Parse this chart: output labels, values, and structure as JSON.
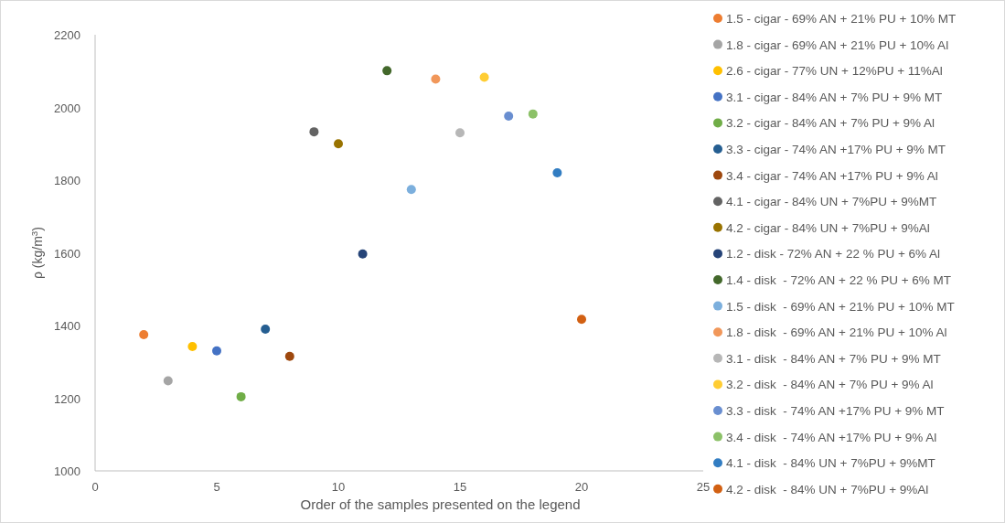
{
  "chart_data": {
    "type": "scatter",
    "xlabel": "Order of the samples presented on the legend",
    "ylabel": "ρ (kg/m$^{3}$)",
    "xlim": [
      0,
      25
    ],
    "xticks": [
      0,
      5,
      10,
      15,
      20,
      25
    ],
    "ylim": [
      1000,
      2200
    ],
    "yticks": [
      1000,
      1200,
      1400,
      1600,
      1800,
      2000,
      2200
    ],
    "grid": false,
    "legend": "right",
    "marker": "circle",
    "series": [
      {
        "name": "1.5 - cigar - 69% AN + 21% PU + 10% MT",
        "color": "#ed7d31",
        "x": [
          2
        ],
        "values": [
          1375
        ]
      },
      {
        "name": "1.8 - cigar - 69% AN + 21% PU + 10% Al",
        "color": "#a5a5a5",
        "x": [
          3
        ],
        "values": [
          1248
        ]
      },
      {
        "name": "2.6 - cigar - 77% UN + 12%PU + 11%Al",
        "color": "#ffc000",
        "x": [
          4
        ],
        "values": [
          1342
        ]
      },
      {
        "name": "3.1 - cigar - 84% AN + 7% PU + 9% MT",
        "color": "#4472c4",
        "x": [
          5
        ],
        "values": [
          1330
        ]
      },
      {
        "name": "3.2 - cigar - 84% AN + 7% PU + 9% Al",
        "color": "#70ad47",
        "x": [
          6
        ],
        "values": [
          1204
        ]
      },
      {
        "name": "3.3 - cigar - 74% AN +17% PU + 9% MT",
        "color": "#255e91",
        "x": [
          7
        ],
        "values": [
          1390
        ]
      },
      {
        "name": "3.4 - cigar - 74% AN +17% PU + 9% Al",
        "color": "#9e480e",
        "x": [
          8
        ],
        "values": [
          1315
        ]
      },
      {
        "name": "4.1 - cigar - 84% UN + 7%PU + 9%MT",
        "color": "#636363",
        "x": [
          9
        ],
        "values": [
          1933
        ]
      },
      {
        "name": "4.2 - cigar - 84% UN + 7%PU + 9%Al",
        "color": "#997300",
        "x": [
          10
        ],
        "values": [
          1900
        ]
      },
      {
        "name": "1.2 - disk - 72% AN + 22 % PU + 6% Al",
        "color": "#264478",
        "x": [
          11
        ],
        "values": [
          1597
        ]
      },
      {
        "name": "1.4 - disk  - 72% AN + 22 % PU + 6% MT",
        "color": "#43682b",
        "x": [
          12
        ],
        "values": [
          2101
        ]
      },
      {
        "name": "1.5 - disk  - 69% AN + 21% PU + 10% MT",
        "color": "#7cafdd",
        "x": [
          13
        ],
        "values": [
          1774
        ]
      },
      {
        "name": "1.8 - disk  - 69% AN + 21% PU + 10% Al",
        "color": "#f1975a",
        "x": [
          14
        ],
        "values": [
          2078
        ]
      },
      {
        "name": "3.1 - disk  - 84% AN + 7% PU + 9% MT",
        "color": "#b7b7b7",
        "x": [
          15
        ],
        "values": [
          1930
        ]
      },
      {
        "name": "3.2 - disk  - 84% AN + 7% PU + 9% Al",
        "color": "#ffcd33",
        "x": [
          16
        ],
        "values": [
          2083
        ]
      },
      {
        "name": "3.3 - disk  - 74% AN +17% PU + 9% MT",
        "color": "#698ed0",
        "x": [
          17
        ],
        "values": [
          1976
        ]
      },
      {
        "name": "3.4 - disk  - 74% AN +17% PU + 9% Al",
        "color": "#8cc168",
        "x": [
          18
        ],
        "values": [
          1982
        ]
      },
      {
        "name": "4.1 - disk  - 84% UN + 7%PU + 9%MT",
        "color": "#327dc2",
        "x": [
          19
        ],
        "values": [
          1820
        ]
      },
      {
        "name": "4.2 - disk  - 84% UN + 7%PU + 9%Al",
        "color": "#d26012",
        "x": [
          20
        ],
        "values": [
          1417
        ]
      }
    ]
  }
}
